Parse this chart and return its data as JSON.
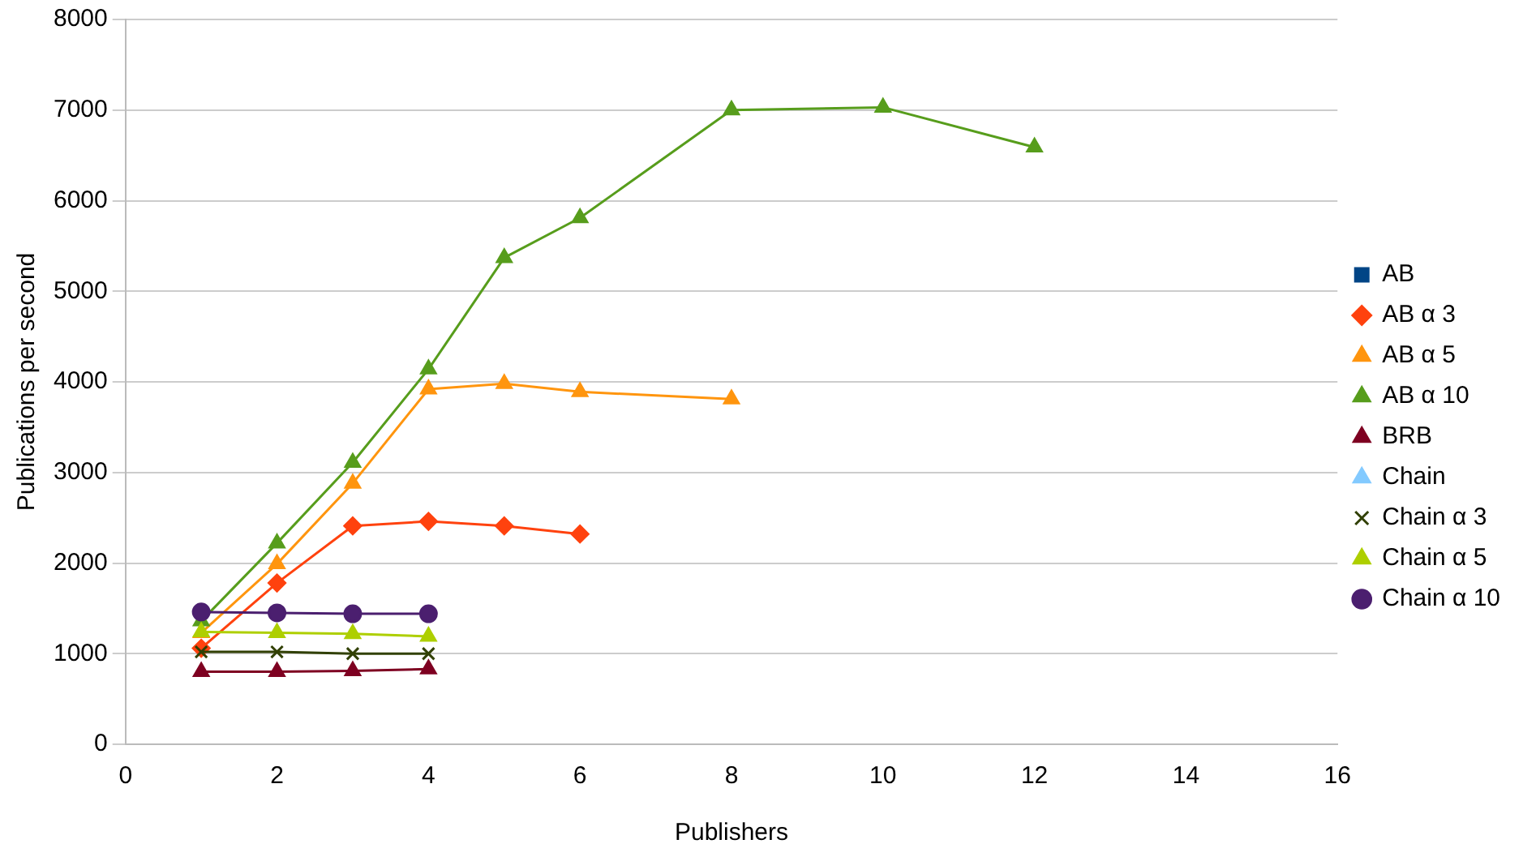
{
  "chart_data": {
    "type": "line",
    "xlabel": "Publishers",
    "ylabel": "Publications per second",
    "xlim": [
      0,
      16
    ],
    "xticks": [
      0,
      2,
      4,
      6,
      8,
      10,
      12,
      14,
      16
    ],
    "ylim": [
      0,
      8000
    ],
    "yticks": [
      0,
      1000,
      2000,
      3000,
      4000,
      5000,
      6000,
      7000,
      8000
    ],
    "grid": "y",
    "legend": "right",
    "line_style": "solid",
    "series": [
      {
        "name": "AB",
        "color": "#004586",
        "marker": "square"
      },
      {
        "name": "AB α 3",
        "color": "#ff420e",
        "marker": "diamond",
        "x": [
          1,
          2,
          3,
          4,
          5,
          6
        ],
        "values": [
          1060,
          1780,
          2410,
          2460,
          2410,
          2320
        ]
      },
      {
        "name": "AB α 5",
        "color": "#ff950e",
        "marker": "triangle",
        "x": [
          1,
          2,
          3,
          4,
          5,
          6,
          8
        ],
        "values": [
          1230,
          1990,
          2880,
          3920,
          3980,
          3890,
          3810
        ]
      },
      {
        "name": "AB α 10",
        "color": "#579d1c",
        "marker": "triangle",
        "x": [
          1,
          2,
          3,
          4,
          5,
          6,
          8,
          10,
          12
        ],
        "values": [
          1360,
          2220,
          3110,
          4140,
          5370,
          5810,
          7000,
          7030,
          6590
        ]
      },
      {
        "name": "BRB",
        "color": "#7e0021",
        "marker": "triangle",
        "x": [
          1,
          2,
          3,
          4
        ],
        "values": [
          800,
          800,
          810,
          830
        ]
      },
      {
        "name": "Chain",
        "color": "#83caff",
        "marker": "triangle"
      },
      {
        "name": "Chain α 3",
        "color": "#314004",
        "marker": "cross",
        "x": [
          1,
          2,
          3,
          4
        ],
        "values": [
          1020,
          1020,
          1000,
          1000
        ]
      },
      {
        "name": "Chain α 5",
        "color": "#aecf00",
        "marker": "triangle",
        "x": [
          1,
          2,
          3,
          4
        ],
        "values": [
          1240,
          1230,
          1220,
          1190
        ]
      },
      {
        "name": "Chain α 10",
        "color": "#4b1f6f",
        "marker": "circle",
        "x": [
          1,
          2,
          3,
          4
        ],
        "values": [
          1460,
          1450,
          1440,
          1440
        ]
      }
    ]
  }
}
